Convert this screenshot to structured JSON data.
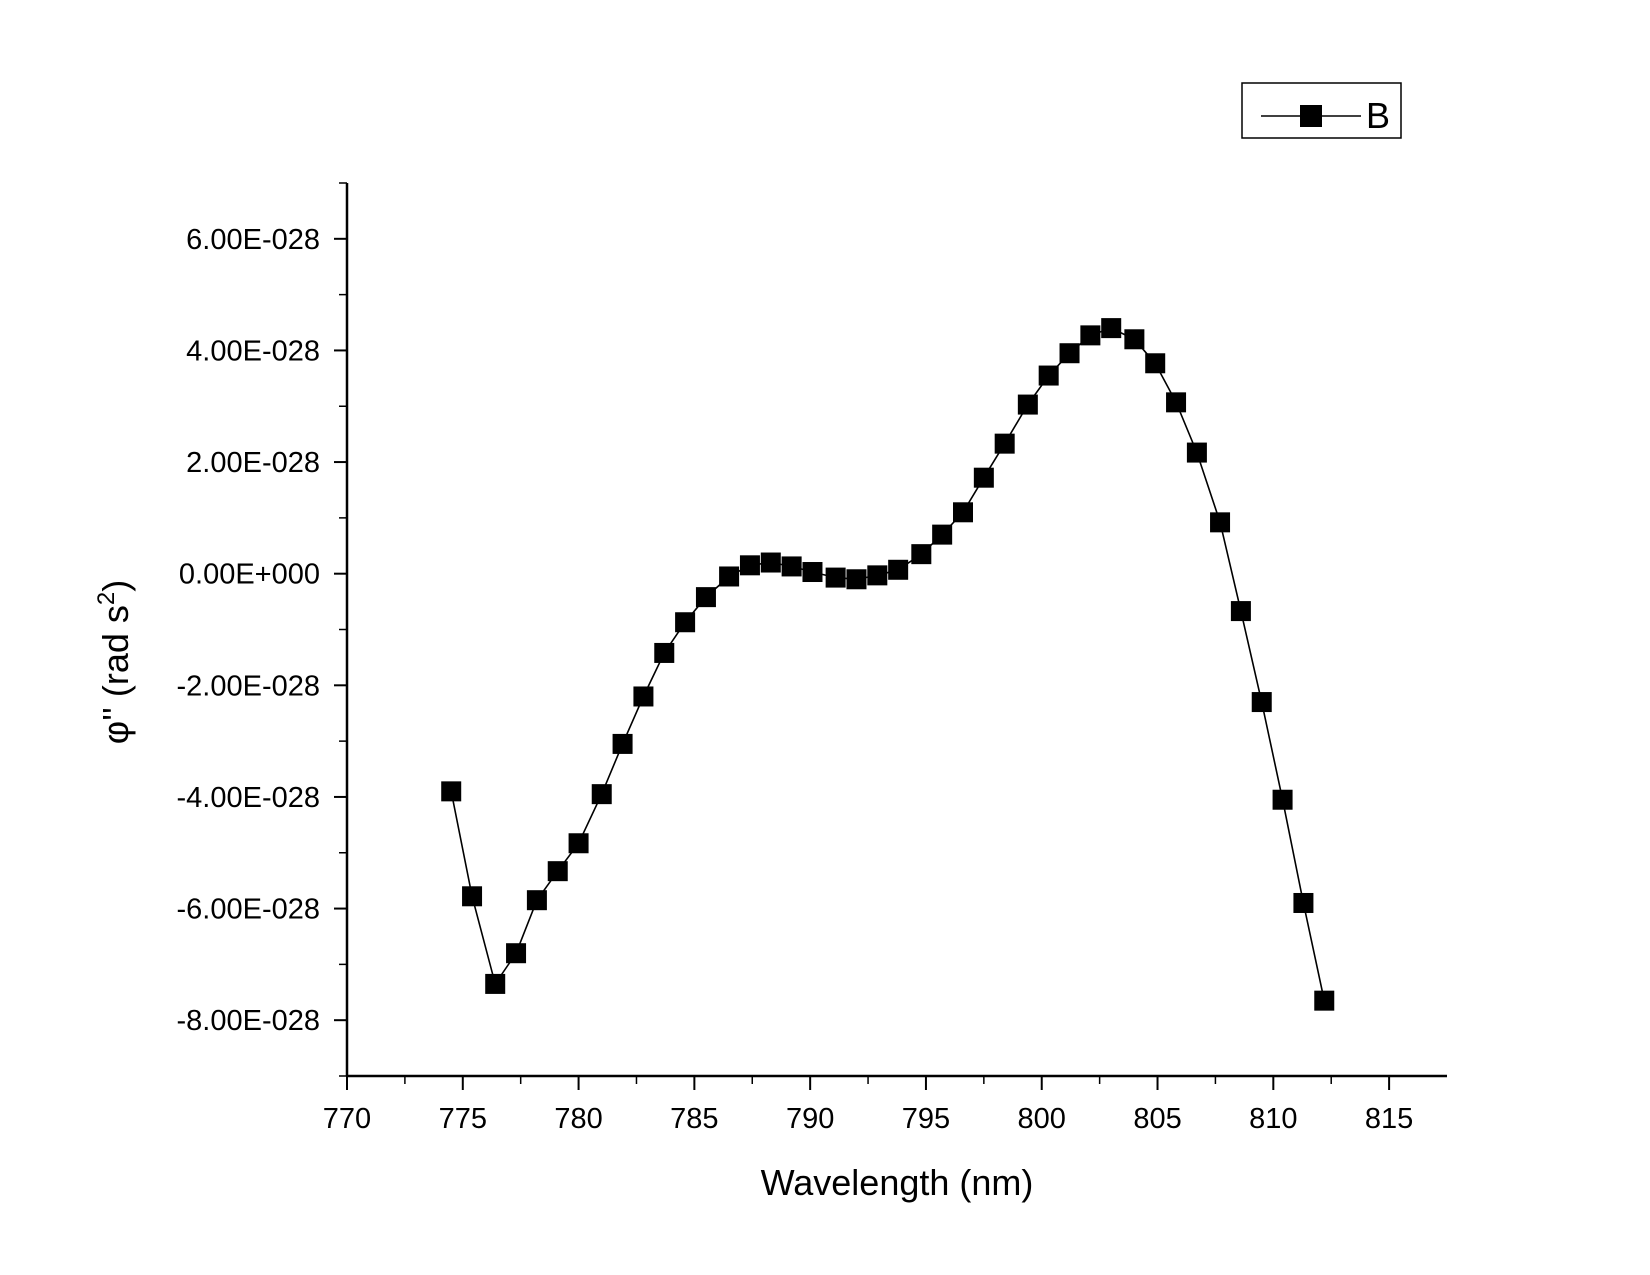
{
  "chart_data": {
    "type": "line",
    "marker": "square",
    "colors": {
      "line": "#000000",
      "marker": "#000000"
    },
    "xlabel": "Wavelength (nm)",
    "ylabel_main": "φ'' (rad s",
    "ylabel_sup": "2",
    "ylabel_close": ")",
    "xlim": [
      770,
      817.5
    ],
    "ylim": [
      -9e-28,
      7e-28
    ],
    "x_ticks": [
      770,
      775,
      780,
      785,
      790,
      795,
      800,
      805,
      810,
      815
    ],
    "x_tick_labels": [
      "770",
      "775",
      "780",
      "785",
      "790",
      "795",
      "800",
      "805",
      "810",
      "815"
    ],
    "y_ticks": [
      -8e-28,
      -6e-28,
      -4e-28,
      -2e-28,
      0,
      2e-28,
      4e-28,
      6e-28
    ],
    "y_tick_labels": [
      "-8.00E-028",
      "-6.00E-028",
      "-4.00E-028",
      "-2.00E-028",
      "0.00E+000",
      "2.00E-028",
      "4.00E-028",
      "6.00E-028"
    ],
    "grid": false,
    "legend_position": "top-right",
    "series": [
      {
        "name": "B",
        "x": [
          774.5,
          775.4,
          776.4,
          777.3,
          778.2,
          779.1,
          780.0,
          781.0,
          781.9,
          782.8,
          783.7,
          784.6,
          785.5,
          786.5,
          787.4,
          788.3,
          789.2,
          790.1,
          791.1,
          792.0,
          792.9,
          793.8,
          794.8,
          795.7,
          796.6,
          797.5,
          798.4,
          799.4,
          800.3,
          801.2,
          802.1,
          803.0,
          804.0,
          804.9,
          805.8,
          806.7,
          807.7,
          808.6,
          809.5,
          810.4,
          811.3,
          812.2
        ],
        "y": [
          -3.9e-28,
          -5.78e-28,
          -7.35e-28,
          -6.8e-28,
          -5.85e-28,
          -5.33e-28,
          -4.83e-28,
          -3.95e-28,
          -3.05e-28,
          -2.2e-28,
          -1.42e-28,
          -8.7e-29,
          -4.2e-29,
          -5e-30,
          1.5e-29,
          2e-29,
          1.3e-29,
          3e-30,
          -7e-30,
          -1e-29,
          -3e-30,
          7e-30,
          3.5e-29,
          7e-29,
          1.1e-28,
          1.72e-28,
          2.33e-28,
          3.03e-28,
          3.55e-28,
          3.95e-28,
          4.27e-28,
          4.4e-28,
          4.2e-28,
          3.77e-28,
          3.07e-28,
          2.17e-28,
          9.2e-29,
          -6.7e-29,
          -2.3e-28,
          -4.05e-28,
          -5.9e-28,
          -7.65e-28
        ]
      }
    ]
  }
}
